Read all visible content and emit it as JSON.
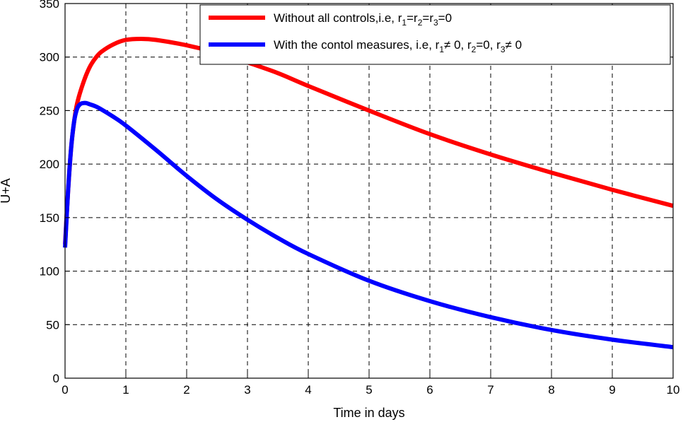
{
  "chart_data": {
    "type": "line",
    "xlabel": "Time in days",
    "ylabel": "U+A",
    "xlim": [
      0,
      10
    ],
    "ylim": [
      0,
      350
    ],
    "xticks": [
      0,
      1,
      2,
      3,
      4,
      5,
      6,
      7,
      8,
      9,
      10
    ],
    "yticks": [
      0,
      50,
      100,
      150,
      200,
      250,
      300,
      350
    ],
    "grid": true,
    "legend_position": "top-right",
    "series": [
      {
        "color": "#ff0000",
        "legend": {
          "prefix": "Without all controls,i.e, ",
          "parts": [
            {
              "t": "r"
            },
            {
              "t": "1",
              "sub": true
            },
            {
              "t": "=r"
            },
            {
              "t": "2",
              "sub": true
            },
            {
              "t": "=r"
            },
            {
              "t": "3",
              "sub": true
            },
            {
              "t": "=0"
            }
          ]
        },
        "x": [
          0,
          0.05,
          0.1,
          0.15,
          0.2,
          0.3,
          0.4,
          0.5,
          0.6,
          0.8,
          1.0,
          1.25,
          1.5,
          2.0,
          2.5,
          3.0,
          3.5,
          4.0,
          5.0,
          6.0,
          7.0,
          8.0,
          9.0,
          10.0
        ],
        "y": [
          125,
          175,
          215,
          240,
          257,
          276,
          290,
          299,
          305,
          312,
          316,
          317,
          316,
          311,
          304,
          295,
          285,
          273,
          250,
          228,
          209,
          192,
          176,
          161
        ]
      },
      {
        "color": "#0000ff",
        "legend": {
          "prefix": "With the contol measures, i.e, ",
          "parts": [
            {
              "t": "r"
            },
            {
              "t": "1",
              "sub": true
            },
            {
              "t": "≠ 0, r"
            },
            {
              "t": "2",
              "sub": true
            },
            {
              "t": "=0, r"
            },
            {
              "t": "3",
              "sub": true
            },
            {
              "t": "≠ 0"
            }
          ]
        },
        "x": [
          0,
          0.05,
          0.1,
          0.15,
          0.2,
          0.25,
          0.3,
          0.35,
          0.4,
          0.5,
          0.6,
          0.8,
          1.0,
          1.5,
          2.0,
          2.5,
          3.0,
          3.5,
          4.0,
          5.0,
          6.0,
          7.0,
          8.0,
          9.0,
          10.0
        ],
        "y": [
          122,
          175,
          215,
          240,
          252,
          256,
          257,
          257,
          256,
          254,
          251,
          244,
          236,
          213,
          189,
          167,
          148,
          131,
          116,
          91,
          72,
          57,
          45,
          36,
          29
        ]
      }
    ]
  }
}
